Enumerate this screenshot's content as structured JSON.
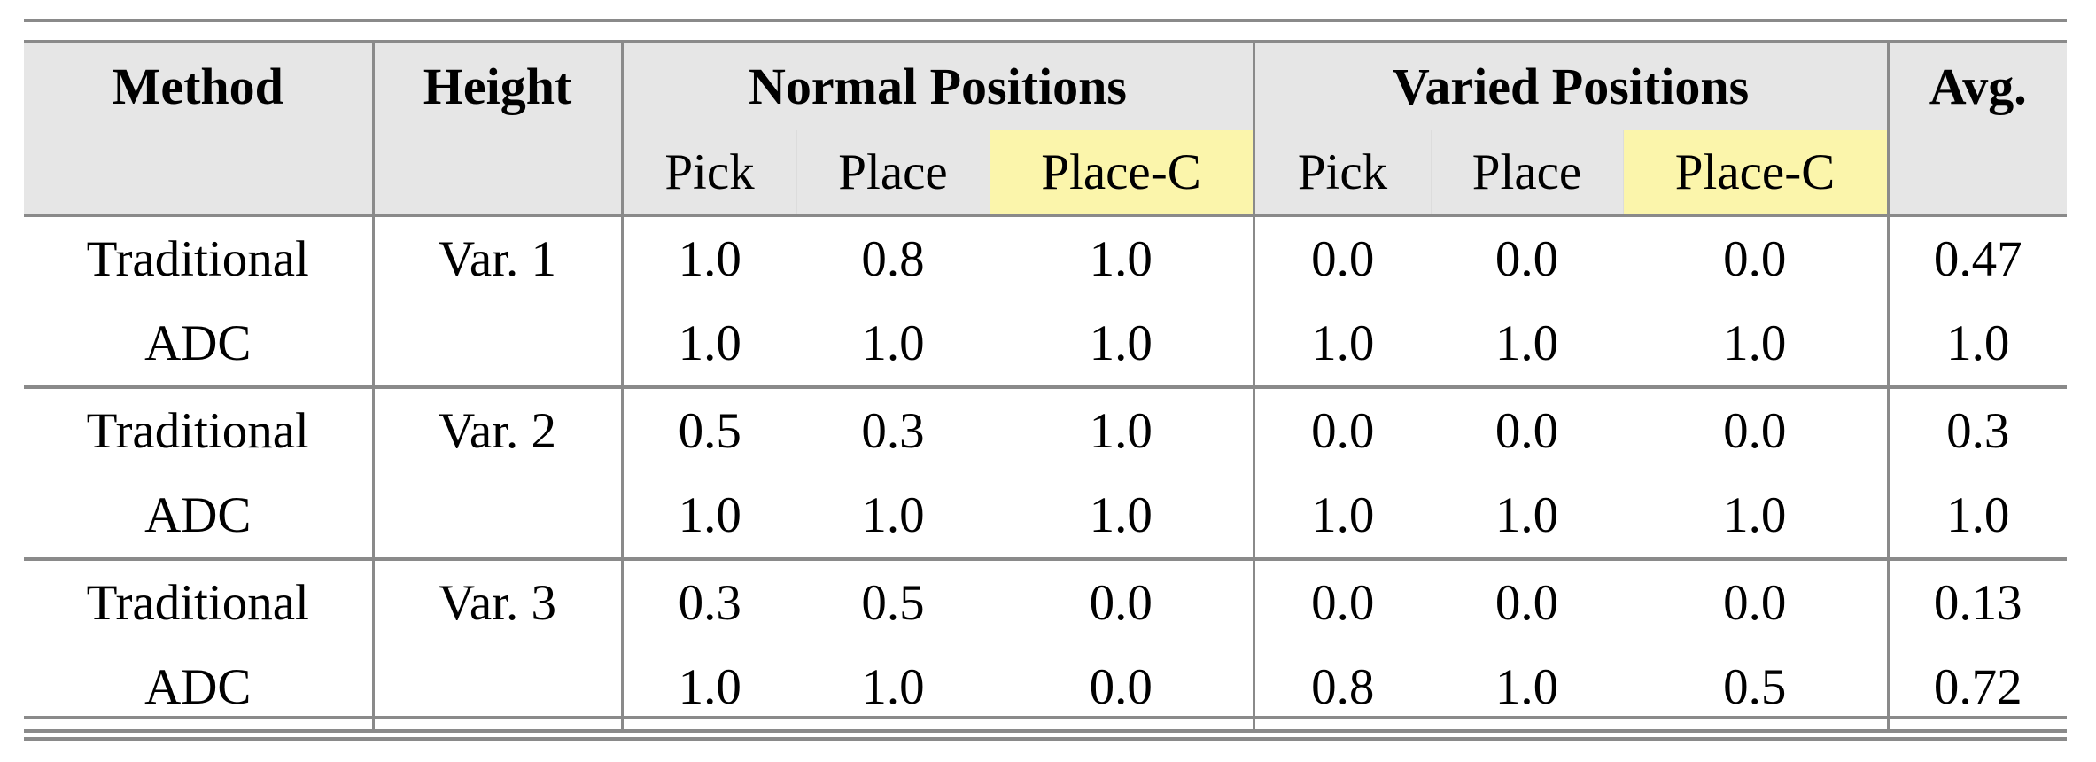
{
  "header": {
    "method": "Method",
    "height": "Height",
    "normal": "Normal Positions",
    "varied": "Varied Positions",
    "avg": "Avg.",
    "sub": [
      "Pick",
      "Place",
      "Place-C",
      "Pick",
      "Place",
      "Place-C"
    ]
  },
  "highlight_color": "#fbf5ab",
  "header_bg": "#e6e6e6",
  "groups": [
    {
      "height": "Var. 1",
      "rows": [
        {
          "method": "Traditional",
          "values": [
            "1.0",
            "0.8",
            "1.0",
            "0.0",
            "0.0",
            "0.0"
          ],
          "avg": "0.47"
        },
        {
          "method": "ADC",
          "values": [
            "1.0",
            "1.0",
            "1.0",
            "1.0",
            "1.0",
            "1.0"
          ],
          "avg": "1.0"
        }
      ]
    },
    {
      "height": "Var. 2",
      "rows": [
        {
          "method": "Traditional",
          "values": [
            "0.5",
            "0.3",
            "1.0",
            "0.0",
            "0.0",
            "0.0"
          ],
          "avg": "0.3"
        },
        {
          "method": "ADC",
          "values": [
            "1.0",
            "1.0",
            "1.0",
            "1.0",
            "1.0",
            "1.0"
          ],
          "avg": "1.0"
        }
      ]
    },
    {
      "height": "Var. 3",
      "rows": [
        {
          "method": "Traditional",
          "values": [
            "0.3",
            "0.5",
            "0.0",
            "0.0",
            "0.0",
            "0.0"
          ],
          "avg": "0.13"
        },
        {
          "method": "ADC",
          "values": [
            "1.0",
            "1.0",
            "0.0",
            "0.8",
            "1.0",
            "0.5"
          ],
          "avg": "0.72"
        }
      ]
    }
  ]
}
